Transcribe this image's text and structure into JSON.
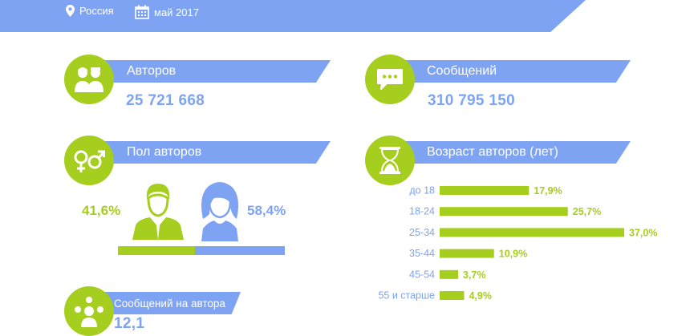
{
  "header": {
    "region": "Россия",
    "date": "май 2017"
  },
  "stats": {
    "authors_label": "Авторов",
    "authors_value": "25 721 668",
    "messages_label": "Сообщений",
    "messages_value": "310 795 150",
    "gender_label": "Пол авторов",
    "male_pct": "41,6%",
    "female_pct": "58,4%",
    "age_label": "Возраст авторов (лет)",
    "per_author_label": "Сообщений на автора",
    "per_author_value": "12,1"
  },
  "chart_data": {
    "type": "bar",
    "orientation": "horizontal",
    "categories": [
      "до 18",
      "18-24",
      "25-34",
      "35-44",
      "45-54",
      "55 и старше"
    ],
    "values": [
      17.9,
      25.7,
      37.0,
      10.9,
      3.7,
      4.9
    ],
    "labels": [
      "17,9%",
      "25,7%",
      "37,0%",
      "10,9%",
      "3,7%",
      "4,9%"
    ],
    "color": "#a6ce1f"
  },
  "colors": {
    "accent_blue": "#7fa3f3",
    "accent_green": "#a6ce1f"
  }
}
